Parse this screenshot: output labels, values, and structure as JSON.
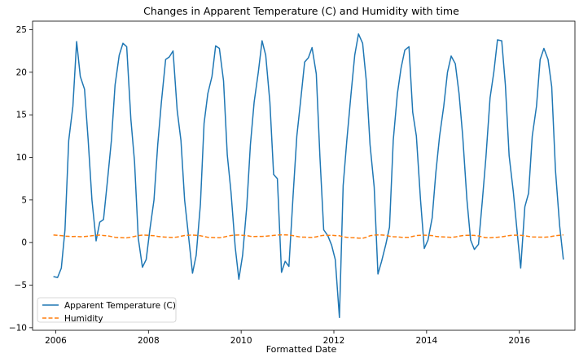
{
  "chart_data": {
    "type": "line",
    "title": "Changes in Apparent Temperature (C) and Humidity with time",
    "xlabel": "Formatted Date",
    "ylabel": "",
    "x_ticks": [
      "2006",
      "2008",
      "2010",
      "2012",
      "2014",
      "2016"
    ],
    "y_ticks": [
      "−10",
      "−5",
      "0",
      "5",
      "10",
      "15",
      "20",
      "25"
    ],
    "xlim": [
      2005.5,
      2017.2
    ],
    "ylim": [
      -10.3,
      26.0
    ],
    "grid": false,
    "legend_position": "bottom-left",
    "x": [
      2005.95,
      2006.04,
      2006.12,
      2006.2,
      2006.28,
      2006.37,
      2006.45,
      2006.53,
      2006.62,
      2006.7,
      2006.78,
      2006.87,
      2006.95,
      2007.03,
      2007.12,
      2007.2,
      2007.28,
      2007.37,
      2007.45,
      2007.53,
      2007.62,
      2007.7,
      2007.78,
      2007.87,
      2007.95,
      2008.03,
      2008.12,
      2008.2,
      2008.28,
      2008.37,
      2008.45,
      2008.53,
      2008.62,
      2008.7,
      2008.78,
      2008.87,
      2008.95,
      2009.03,
      2009.12,
      2009.2,
      2009.28,
      2009.37,
      2009.45,
      2009.53,
      2009.62,
      2009.7,
      2009.78,
      2009.87,
      2009.95,
      2010.03,
      2010.12,
      2010.2,
      2010.28,
      2010.37,
      2010.45,
      2010.53,
      2010.62,
      2010.7,
      2010.78,
      2010.87,
      2010.95,
      2011.03,
      2011.12,
      2011.2,
      2011.28,
      2011.37,
      2011.45,
      2011.53,
      2011.62,
      2011.7,
      2011.78,
      2011.87,
      2011.95,
      2012.03,
      2012.12,
      2012.2,
      2012.28,
      2012.37,
      2012.45,
      2012.53,
      2012.62,
      2012.7,
      2012.78,
      2012.87,
      2012.95,
      2013.03,
      2013.12,
      2013.2,
      2013.28,
      2013.37,
      2013.45,
      2013.53,
      2013.62,
      2013.7,
      2013.78,
      2013.87,
      2013.95,
      2014.03,
      2014.12,
      2014.2,
      2014.28,
      2014.37,
      2014.45,
      2014.53,
      2014.62,
      2014.7,
      2014.78,
      2014.87,
      2014.95,
      2015.03,
      2015.12,
      2015.2,
      2015.28,
      2015.37,
      2015.45,
      2015.53,
      2015.62,
      2015.7,
      2015.78,
      2015.87,
      2015.95,
      2016.03,
      2016.12,
      2016.2,
      2016.28,
      2016.37,
      2016.45,
      2016.53,
      2016.62,
      2016.7,
      2016.78,
      2016.87,
      2016.95
    ],
    "series": [
      {
        "name": "Apparent Temperature (C)",
        "color": "#1f77b4",
        "style": "solid",
        "values": [
          -4.0,
          -4.1,
          -3.0,
          1.5,
          12.0,
          16.0,
          23.6,
          19.5,
          18.0,
          12.0,
          5.0,
          0.2,
          2.4,
          2.7,
          7.5,
          12.0,
          18.5,
          22.0,
          23.4,
          23.0,
          14.5,
          9.5,
          0.5,
          -2.9,
          -2.0,
          1.5,
          5.0,
          11.5,
          16.5,
          21.5,
          21.8,
          22.5,
          15.5,
          12.0,
          5.0,
          0.5,
          -3.6,
          -1.5,
          4.5,
          14.0,
          17.5,
          19.5,
          23.1,
          22.8,
          19.0,
          10.3,
          6.0,
          -0.5,
          -4.3,
          -1.5,
          4.2,
          11.5,
          16.5,
          20.0,
          23.7,
          22.0,
          16.5,
          8.0,
          7.5,
          -3.5,
          -2.2,
          -2.8,
          5.5,
          12.5,
          16.5,
          21.2,
          21.7,
          22.9,
          19.8,
          10.0,
          1.5,
          0.8,
          -0.3,
          -2.0,
          -8.8,
          6.7,
          12.0,
          17.5,
          22.0,
          24.5,
          23.4,
          19.0,
          11.5,
          6.5,
          -3.7,
          -2.2,
          -0.2,
          1.8,
          12.0,
          17.5,
          20.5,
          22.6,
          23.0,
          15.3,
          12.5,
          5.0,
          -0.7,
          0.3,
          2.9,
          8.2,
          12.5,
          16.0,
          20.0,
          21.9,
          21.0,
          17.5,
          12.5,
          5.0,
          0.3,
          -0.8,
          -0.2,
          4.8,
          10.0,
          17.0,
          20.0,
          23.8,
          23.7,
          18.5,
          10.2,
          6.0,
          1.5,
          -3.0,
          4.2,
          5.8,
          12.5,
          16.0,
          21.5,
          22.8,
          21.5,
          18.3,
          8.5,
          2.0,
          -2.0
        ]
      },
      {
        "name": "Humidity",
        "color": "#ff7f0e",
        "style": "dashed",
        "values": [
          0.89,
          0.85,
          0.82,
          0.75,
          0.73,
          0.7,
          0.72,
          0.69,
          0.7,
          0.74,
          0.8,
          0.85,
          0.88,
          0.83,
          0.79,
          0.7,
          0.62,
          0.58,
          0.56,
          0.55,
          0.63,
          0.72,
          0.82,
          0.88,
          0.87,
          0.84,
          0.8,
          0.72,
          0.68,
          0.64,
          0.62,
          0.6,
          0.65,
          0.74,
          0.83,
          0.87,
          0.88,
          0.85,
          0.8,
          0.7,
          0.62,
          0.6,
          0.58,
          0.56,
          0.64,
          0.74,
          0.83,
          0.88,
          0.89,
          0.86,
          0.82,
          0.73,
          0.7,
          0.72,
          0.72,
          0.74,
          0.8,
          0.84,
          0.89,
          0.9,
          0.91,
          0.88,
          0.82,
          0.72,
          0.65,
          0.64,
          0.62,
          0.6,
          0.68,
          0.78,
          0.85,
          0.84,
          0.86,
          0.82,
          0.8,
          0.68,
          0.62,
          0.58,
          0.56,
          0.52,
          0.5,
          0.62,
          0.8,
          0.88,
          0.9,
          0.89,
          0.85,
          0.74,
          0.69,
          0.67,
          0.63,
          0.61,
          0.62,
          0.72,
          0.82,
          0.86,
          0.87,
          0.85,
          0.82,
          0.72,
          0.68,
          0.66,
          0.64,
          0.62,
          0.66,
          0.75,
          0.82,
          0.86,
          0.86,
          0.84,
          0.78,
          0.65,
          0.58,
          0.57,
          0.6,
          0.63,
          0.68,
          0.74,
          0.82,
          0.87,
          0.87,
          0.85,
          0.8,
          0.72,
          0.67,
          0.65,
          0.64,
          0.63,
          0.66,
          0.72,
          0.8,
          0.86,
          0.9
        ]
      }
    ]
  }
}
